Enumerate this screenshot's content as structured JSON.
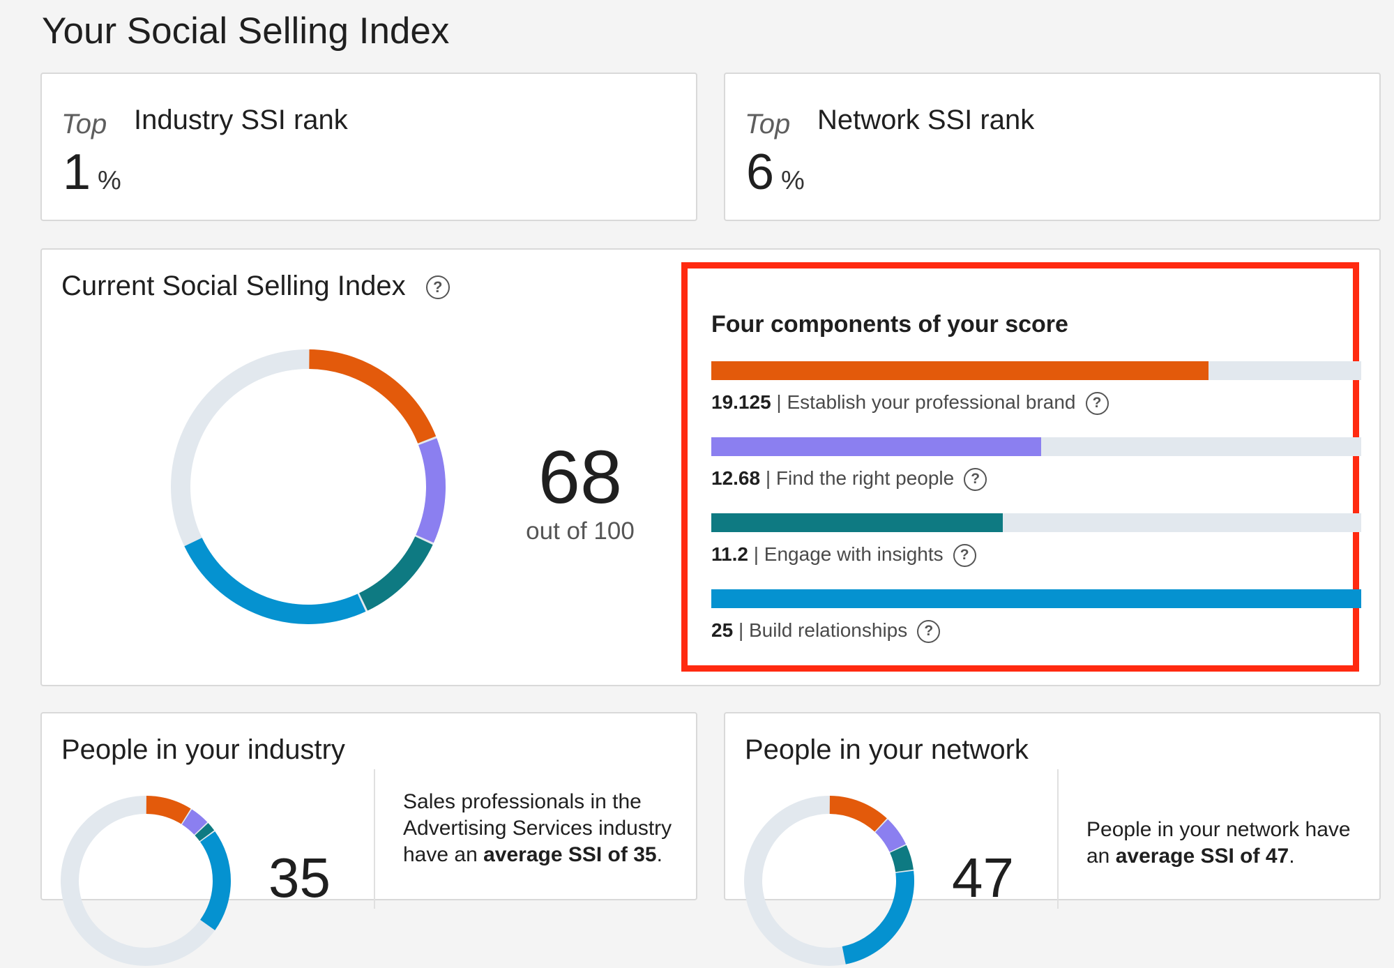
{
  "page": {
    "title": "Your Social Selling Index"
  },
  "industry_rank": {
    "top_label": "Top",
    "title": "Industry SSI rank",
    "value": "1",
    "unit": "%"
  },
  "network_rank": {
    "top_label": "Top",
    "title": "Network SSI rank",
    "value": "6",
    "unit": "%"
  },
  "current_ssi": {
    "title": "Current Social Selling Index",
    "score": "68",
    "out_of": "out of 100",
    "track_color": "#e2e8ee"
  },
  "components": {
    "title": "Four components of your score",
    "max": 25,
    "items": [
      {
        "value": "19.125",
        "label": "Establish your professional brand",
        "score": 19.125,
        "color": "#e35a0b"
      },
      {
        "value": "12.68",
        "label": "Find the right people",
        "score": 12.68,
        "color": "#8b7ff0"
      },
      {
        "value": "11.2",
        "label": "Engage with insights",
        "score": 11.2,
        "color": "#0e7a82"
      },
      {
        "value": "25",
        "label": "Build relationships",
        "score": 25,
        "color": "#0592d0"
      }
    ],
    "separator": "|"
  },
  "industry_peers": {
    "title": "People in your industry",
    "score": "35",
    "desc_text": "Sales professionals in the Advertising Services industry have an",
    "desc_bold": "average SSI of 35",
    "desc_end": "."
  },
  "network_peers": {
    "title": "People in your network",
    "score": "47",
    "desc_text": "People in your network have an",
    "desc_bold": "average SSI of 47",
    "desc_end": "."
  },
  "icons": {
    "help": "question-circle-icon",
    "help_glyph": "?"
  }
}
